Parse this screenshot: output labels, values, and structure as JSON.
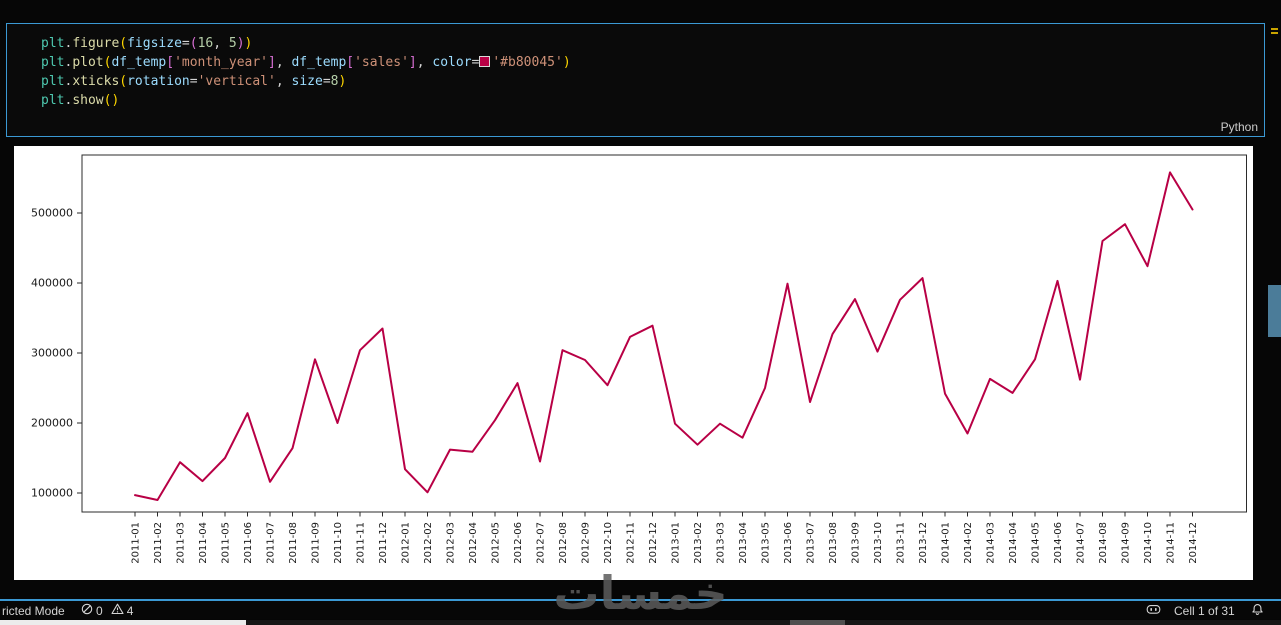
{
  "editor": {
    "language_label": "Python",
    "inline_color_swatch": "#b80045",
    "lines": [
      [
        [
          "mod",
          "plt"
        ],
        [
          "p",
          "."
        ],
        [
          "fn",
          "figure"
        ],
        [
          "b1",
          "("
        ],
        [
          "param",
          "figsize"
        ],
        [
          "p",
          "="
        ],
        [
          "b2",
          "("
        ],
        [
          "num",
          "16"
        ],
        [
          "p",
          ", "
        ],
        [
          "num",
          "5"
        ],
        [
          "b2",
          ")"
        ],
        [
          "b1",
          ")"
        ]
      ],
      [
        [
          "mod",
          "plt"
        ],
        [
          "p",
          "."
        ],
        [
          "fn",
          "plot"
        ],
        [
          "b1",
          "("
        ],
        [
          "var",
          "df_temp"
        ],
        [
          "b2",
          "["
        ],
        [
          "str",
          "'month_year'"
        ],
        [
          "b2",
          "]"
        ],
        [
          "p",
          ", "
        ],
        [
          "var",
          "df_temp"
        ],
        [
          "b2",
          "["
        ],
        [
          "str",
          "'sales'"
        ],
        [
          "b2",
          "]"
        ],
        [
          "p",
          ", "
        ],
        [
          "param",
          "color"
        ],
        [
          "p",
          "="
        ],
        [
          "swatch",
          ""
        ],
        [
          "str",
          "'#b80045'"
        ],
        [
          "b1",
          ")"
        ]
      ],
      [
        [
          "mod",
          "plt"
        ],
        [
          "p",
          "."
        ],
        [
          "fn",
          "xticks"
        ],
        [
          "b1",
          "("
        ],
        [
          "param",
          "rotation"
        ],
        [
          "p",
          "="
        ],
        [
          "str",
          "'vertical'"
        ],
        [
          "p",
          ", "
        ],
        [
          "param",
          "size"
        ],
        [
          "p",
          "="
        ],
        [
          "num",
          "8"
        ],
        [
          "b1",
          ")"
        ]
      ],
      [
        [
          "mod",
          "plt"
        ],
        [
          "p",
          "."
        ],
        [
          "fn",
          "show"
        ],
        [
          "b1",
          "("
        ],
        [
          "b1",
          ")"
        ]
      ]
    ]
  },
  "chart_data": {
    "type": "line",
    "title": "",
    "xlabel": "",
    "ylabel": "",
    "line_color": "#b80045",
    "grid": false,
    "legend": null,
    "ylim": [
      73000,
      583000
    ],
    "yticks": [
      100000,
      200000,
      300000,
      400000,
      500000
    ],
    "categories": [
      "2011-01",
      "2011-02",
      "2011-03",
      "2011-04",
      "2011-05",
      "2011-06",
      "2011-07",
      "2011-08",
      "2011-09",
      "2011-10",
      "2011-11",
      "2011-12",
      "2012-01",
      "2012-02",
      "2012-03",
      "2012-04",
      "2012-05",
      "2012-06",
      "2012-07",
      "2012-08",
      "2012-09",
      "2012-10",
      "2012-11",
      "2012-12",
      "2013-01",
      "2013-02",
      "2013-03",
      "2013-04",
      "2013-05",
      "2013-06",
      "2013-07",
      "2013-08",
      "2013-09",
      "2013-10",
      "2013-11",
      "2013-12",
      "2014-01",
      "2014-02",
      "2014-03",
      "2014-04",
      "2014-05",
      "2014-06",
      "2014-07",
      "2014-08",
      "2014-09",
      "2014-10",
      "2014-11",
      "2014-12"
    ],
    "values": [
      97000,
      90000,
      144000,
      117000,
      150000,
      214000,
      116000,
      164000,
      291000,
      200000,
      304000,
      335000,
      134000,
      101000,
      162000,
      159000,
      204000,
      257000,
      145000,
      304000,
      290000,
      254000,
      323000,
      339000,
      199000,
      169000,
      199000,
      179000,
      250000,
      399000,
      230000,
      327000,
      377000,
      302000,
      376000,
      407000,
      242000,
      185000,
      263000,
      243000,
      291000,
      403000,
      262000,
      460000,
      484000,
      424000,
      558000,
      505000
    ]
  },
  "watermark": {
    "text": "خمسات"
  },
  "statusbar": {
    "restricted_mode_label": "ricted Mode",
    "error_count": "0",
    "warning_count": "4",
    "cell_indicator": "Cell 1 of 31"
  },
  "colors": {
    "cell_border": "#3b99d4",
    "statusbar_border": "#3b99d4",
    "scrollbar_thumb": "#4b7c99",
    "ruler_warning": "#c9a400",
    "figure_background": "#ffffff"
  }
}
